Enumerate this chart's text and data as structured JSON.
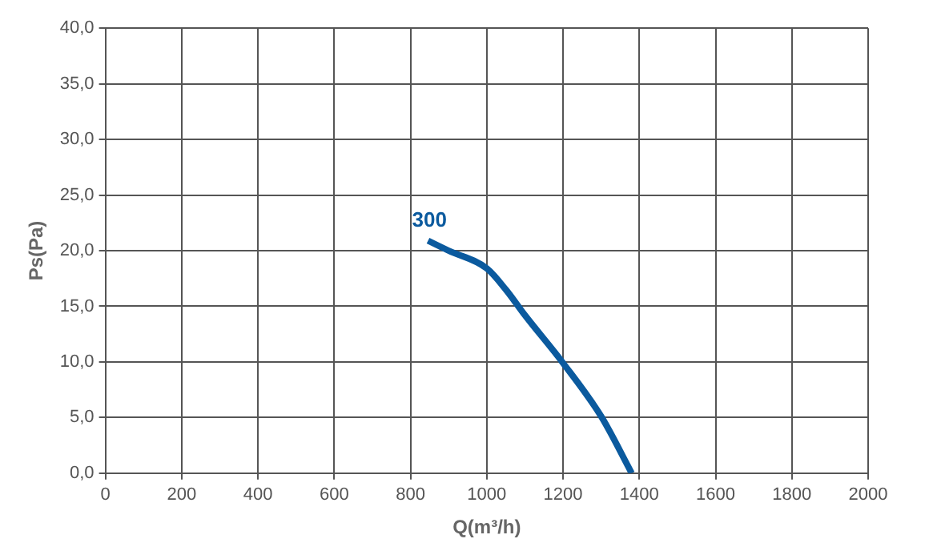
{
  "chart_data": {
    "type": "line",
    "xlabel": "Q(m³/h)",
    "ylabel": "Ps(Pa)",
    "series": [
      {
        "name": "300",
        "color": "#0b5a9e",
        "x": [
          846,
          900,
          1000,
          1050,
          1100,
          1200,
          1300,
          1380
        ],
        "values": [
          20.9,
          20.0,
          18.4,
          16.5,
          14.2,
          9.9,
          5.1,
          0
        ]
      }
    ],
    "xlim": [
      0,
      2000
    ],
    "xticks": [
      0,
      200,
      400,
      600,
      800,
      1000,
      1200,
      1400,
      1600,
      1800,
      2000
    ],
    "ylim": [
      0,
      40
    ],
    "yticks": [
      {
        "value": 0,
        "label": "0,0"
      },
      {
        "value": 5,
        "label": "5,0"
      },
      {
        "value": 10,
        "label": "10,0"
      },
      {
        "value": 15,
        "label": "15,0"
      },
      {
        "value": 20,
        "label": "20,0"
      },
      {
        "value": 25,
        "label": "25,0"
      },
      {
        "value": 30,
        "label": "30,0"
      },
      {
        "value": 35,
        "label": "35,0"
      },
      {
        "value": 40,
        "label": "40,0"
      }
    ],
    "grid": true,
    "legend": false,
    "marker": "none",
    "line_style": "solid"
  }
}
